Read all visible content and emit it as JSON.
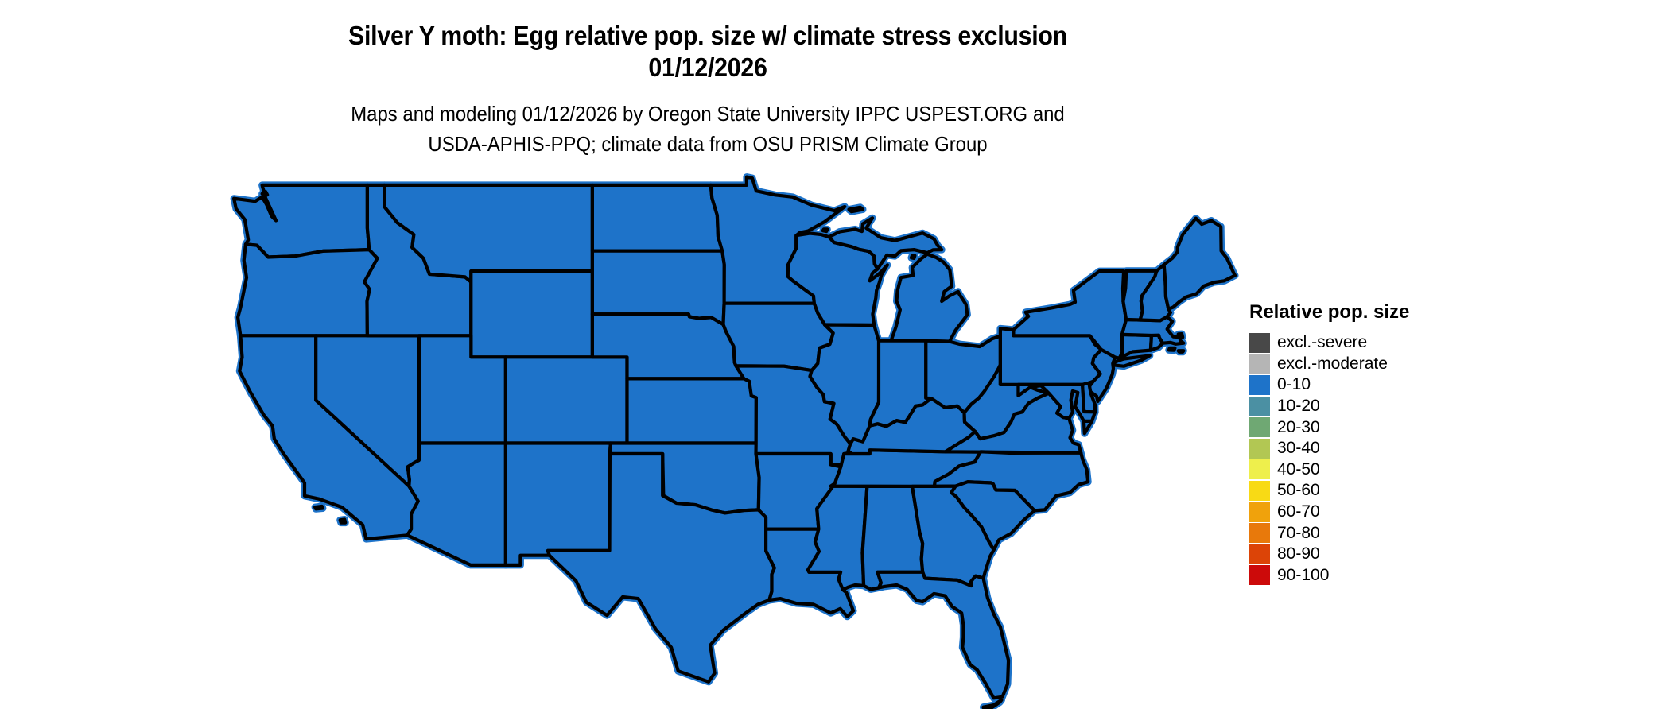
{
  "header": {
    "title_line1": "Silver Y moth: Egg relative pop. size w/ climate stress exclusion",
    "title_line2": "01/12/2026",
    "subtitle_line1": "Maps and modeling 01/12/2026 by Oregon State University IPPC USPEST.ORG and",
    "subtitle_line2": "USDA-APHIS-PPQ; climate data from OSU PRISM Climate Group"
  },
  "legend": {
    "title": "Relative pop. size",
    "items": [
      {
        "label": "excl.-severe",
        "color": "#484848"
      },
      {
        "label": "excl.-moderate",
        "color": "#b5b5b5"
      },
      {
        "label": "0-10",
        "color": "#1e73c9"
      },
      {
        "label": "10-20",
        "color": "#4b90a3"
      },
      {
        "label": "20-30",
        "color": "#6fa873"
      },
      {
        "label": "30-40",
        "color": "#b2c753"
      },
      {
        "label": "40-50",
        "color": "#eeef4c"
      },
      {
        "label": "50-60",
        "color": "#f8da15"
      },
      {
        "label": "60-70",
        "color": "#f0a20c"
      },
      {
        "label": "70-80",
        "color": "#e8790b"
      },
      {
        "label": "80-90",
        "color": "#dc4407"
      },
      {
        "label": "90-100",
        "color": "#cc0a0a"
      }
    ]
  },
  "map": {
    "region": "Contiguous United States",
    "fill_color": "#1e73c9",
    "border_color": "#000000",
    "displayed_class_all_states": "0-10"
  }
}
